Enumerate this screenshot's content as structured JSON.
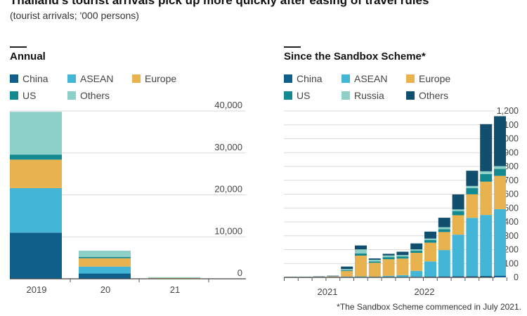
{
  "header": {
    "title": "Thailand's tourist arrivals pick up more quickly after easing of travel rules",
    "subtitle": "(tourist arrivals; '000 persons)"
  },
  "colors": {
    "China": "#0e5f8a",
    "ASEAN": "#43b6d8",
    "Europe": "#e8b24f",
    "US": "#138a8f",
    "Others": "#8dd0c7",
    "Russia": "#8dd0c7",
    "Others_right": "#124f6e"
  },
  "footnote": "*The Sandbox Scheme commenced in July 2021.",
  "chart_data": [
    {
      "type": "bar",
      "stacked": true,
      "title": "Annual",
      "categories": [
        "2019",
        "20",
        "21"
      ],
      "legend": [
        "China",
        "ASEAN",
        "Europe",
        "US",
        "Others"
      ],
      "series": [
        {
          "name": "China",
          "values": [
            11000,
            1250,
            10
          ]
        },
        {
          "name": "ASEAN",
          "values": [
            10600,
            1650,
            40
          ]
        },
        {
          "name": "Europe",
          "values": [
            6800,
            2000,
            150
          ]
        },
        {
          "name": "US",
          "values": [
            1200,
            300,
            20
          ]
        },
        {
          "name": "Others",
          "values": [
            10200,
            1500,
            160
          ]
        }
      ],
      "ylim": [
        0,
        40000
      ],
      "yticks": [
        "40,000",
        "30,000",
        "20,000",
        "10,000",
        "0"
      ],
      "ytick_values": [
        40000,
        30000,
        20000,
        10000,
        0
      ],
      "axis_side": "right"
    },
    {
      "type": "bar",
      "stacked": true,
      "title": "Since the Sandbox Scheme*",
      "legend": [
        "China",
        "ASEAN",
        "Europe",
        "US",
        "Russia",
        "Others"
      ],
      "legend_color_keys": [
        "China",
        "ASEAN",
        "Europe",
        "US",
        "Russia",
        "Others_right"
      ],
      "x_group_labels": [
        "2021",
        "2022"
      ],
      "series": [
        {
          "name": "China",
          "values": [
            0,
            0,
            0,
            0,
            1,
            1,
            0,
            1,
            1,
            2,
            5,
            7,
            8,
            9,
            10,
            12
          ]
        },
        {
          "name": "ASEAN",
          "values": [
            1,
            1,
            1,
            2,
            5,
            6,
            5,
            10,
            15,
            45,
            110,
            190,
            300,
            420,
            440,
            480
          ]
        },
        {
          "name": "Europe",
          "values": [
            2,
            2,
            3,
            5,
            40,
            150,
            100,
            120,
            120,
            130,
            135,
            130,
            140,
            170,
            240,
            240
          ]
        },
        {
          "name": "US",
          "values": [
            1,
            1,
            1,
            1,
            6,
            15,
            10,
            15,
            15,
            15,
            20,
            20,
            30,
            45,
            55,
            50
          ]
        },
        {
          "name": "Russia",
          "values": [
            0,
            0,
            0,
            1,
            8,
            30,
            12,
            12,
            10,
            10,
            10,
            15,
            12,
            15,
            20,
            20
          ]
        },
        {
          "name": "Others",
          "values": [
            1,
            1,
            2,
            3,
            18,
            28,
            10,
            12,
            24,
            43,
            50,
            68,
            108,
            110,
            340,
            360
          ]
        }
      ],
      "ylim": [
        0,
        1200
      ],
      "yticks": [
        "1,200",
        "1,100",
        "1,000",
        "900",
        "800",
        "700",
        "600",
        "500",
        "400",
        "300",
        "200",
        "100",
        "0"
      ],
      "ytick_values": [
        1200,
        1100,
        1000,
        900,
        800,
        700,
        600,
        500,
        400,
        300,
        200,
        100,
        0
      ],
      "axis_side": "right"
    }
  ]
}
